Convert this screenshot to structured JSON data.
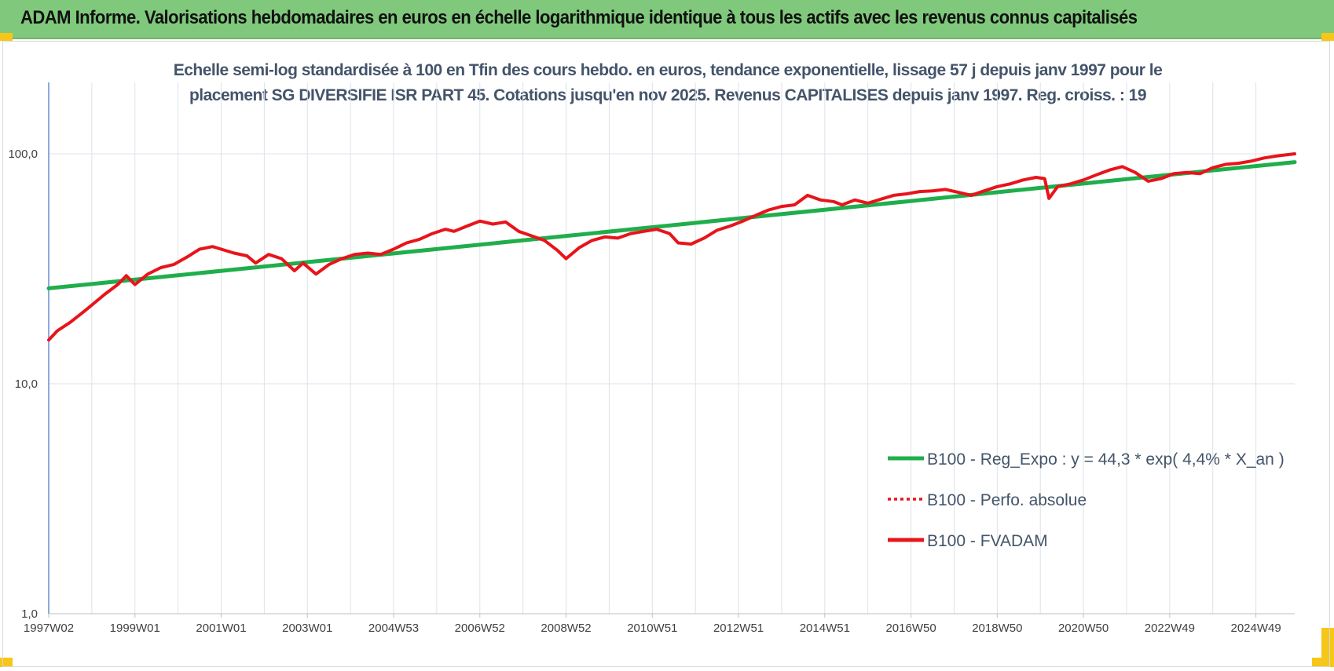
{
  "header": {
    "title": "ADAM Informe. Valorisations hebdomadaires en euros en échelle logarithmique identique à tous les actifs avec les revenus connus capitalisés"
  },
  "chart_data": {
    "type": "line",
    "title": [
      "Echelle semi-log standardisée à 100 en Tfin des cours hebdo. en euros, tendance exponentielle, lissage 57 j depuis janv 1997 pour le",
      "placement SG DIVERSIFIE ISR PART 45. Cotations jusqu'en nov 2025. Revenus CAPITALISES depuis janv 1997. Reg. croiss. : 19"
    ],
    "y_scale": "log",
    "ylim": [
      1,
      200
    ],
    "y_ticks": [
      {
        "value": 1,
        "label": "1,0"
      },
      {
        "value": 10,
        "label": "10,0"
      },
      {
        "value": 100,
        "label": "100,0"
      }
    ],
    "xlim": [
      1997.0,
      2025.9
    ],
    "x_ticks": [
      {
        "value": 1997.0,
        "label": "1997W02"
      },
      {
        "value": 1999.0,
        "label": "1999W01"
      },
      {
        "value": 2001.0,
        "label": "2001W01"
      },
      {
        "value": 2003.0,
        "label": "2003W01"
      },
      {
        "value": 2005.0,
        "label": "2004W53"
      },
      {
        "value": 2007.0,
        "label": "2006W52"
      },
      {
        "value": 2009.0,
        "label": "2008W52"
      },
      {
        "value": 2011.0,
        "label": "2010W51"
      },
      {
        "value": 2013.0,
        "label": "2012W51"
      },
      {
        "value": 2015.0,
        "label": "2014W51"
      },
      {
        "value": 2017.0,
        "label": "2016W50"
      },
      {
        "value": 2019.0,
        "label": "2018W50"
      },
      {
        "value": 2021.0,
        "label": "2020W50"
      },
      {
        "value": 2023.0,
        "label": "2022W49"
      },
      {
        "value": 2025.0,
        "label": "2024W49"
      }
    ],
    "grid": true,
    "legend_position": "bottom-right",
    "series": [
      {
        "name": "B100 - Reg_Expo : y = 44,3 * exp( 4,4% *  X_an )",
        "color": "#1fae4b",
        "style": "solid",
        "x": [
          1997.0,
          2025.9
        ],
        "y": [
          26.0,
          92.0
        ]
      },
      {
        "name": "B100 - Perfo. absolue",
        "color": "#e8141a",
        "style": "dotted",
        "x": [],
        "y": []
      },
      {
        "name": "B100 - FVADAM",
        "color": "#e8141a",
        "style": "solid",
        "x": [
          1997.0,
          1997.2,
          1997.5,
          1997.8,
          1998.0,
          1998.3,
          1998.6,
          1998.8,
          1999.0,
          1999.3,
          1999.6,
          1999.9,
          2000.2,
          2000.5,
          2000.8,
          2001.0,
          2001.3,
          2001.6,
          2001.8,
          2002.1,
          2002.4,
          2002.7,
          2002.9,
          2003.2,
          2003.5,
          2003.8,
          2004.1,
          2004.4,
          2004.7,
          2005.0,
          2005.3,
          2005.6,
          2005.9,
          2006.2,
          2006.4,
          2006.7,
          2007.0,
          2007.3,
          2007.6,
          2007.9,
          2008.2,
          2008.5,
          2008.8,
          2009.0,
          2009.3,
          2009.6,
          2009.9,
          2010.2,
          2010.5,
          2010.8,
          2011.1,
          2011.4,
          2011.6,
          2011.9,
          2012.2,
          2012.5,
          2012.8,
          2013.1,
          2013.4,
          2013.7,
          2014.0,
          2014.3,
          2014.6,
          2014.9,
          2015.2,
          2015.4,
          2015.7,
          2016.0,
          2016.3,
          2016.6,
          2016.9,
          2017.2,
          2017.5,
          2017.8,
          2018.1,
          2018.4,
          2018.7,
          2019.0,
          2019.3,
          2019.6,
          2019.9,
          2020.1,
          2020.2,
          2020.4,
          2020.7,
          2021.0,
          2021.3,
          2021.6,
          2021.9,
          2022.2,
          2022.5,
          2022.8,
          2023.1,
          2023.4,
          2023.7,
          2024.0,
          2024.3,
          2024.6,
          2024.9,
          2025.2,
          2025.5,
          2025.9
        ],
        "y": [
          15.5,
          17.0,
          18.5,
          20.5,
          22.0,
          24.5,
          27.0,
          29.5,
          27.0,
          30.0,
          32.0,
          33.0,
          35.5,
          38.5,
          39.5,
          38.5,
          37.0,
          36.0,
          33.5,
          36.5,
          35.0,
          31.0,
          33.5,
          30.0,
          33.0,
          35.0,
          36.5,
          37.0,
          36.5,
          38.5,
          41.0,
          42.5,
          45.0,
          47.0,
          46.0,
          48.5,
          51.0,
          49.5,
          50.5,
          46.0,
          44.0,
          42.0,
          38.0,
          35.0,
          39.0,
          42.0,
          43.5,
          43.0,
          45.0,
          46.0,
          47.0,
          45.0,
          41.0,
          40.5,
          43.0,
          46.5,
          48.5,
          51.0,
          54.0,
          57.0,
          59.0,
          60.0,
          66.0,
          63.0,
          62.0,
          60.0,
          63.0,
          61.0,
          63.5,
          66.0,
          67.0,
          68.5,
          69.0,
          70.0,
          68.0,
          66.0,
          69.0,
          72.0,
          74.0,
          77.0,
          79.0,
          78.0,
          64.0,
          72.0,
          74.0,
          77.0,
          81.0,
          85.0,
          88.0,
          83.0,
          76.0,
          78.0,
          82.0,
          83.0,
          82.0,
          87.0,
          90.0,
          91.0,
          93.0,
          96.0,
          98.0,
          100.0
        ]
      }
    ]
  }
}
